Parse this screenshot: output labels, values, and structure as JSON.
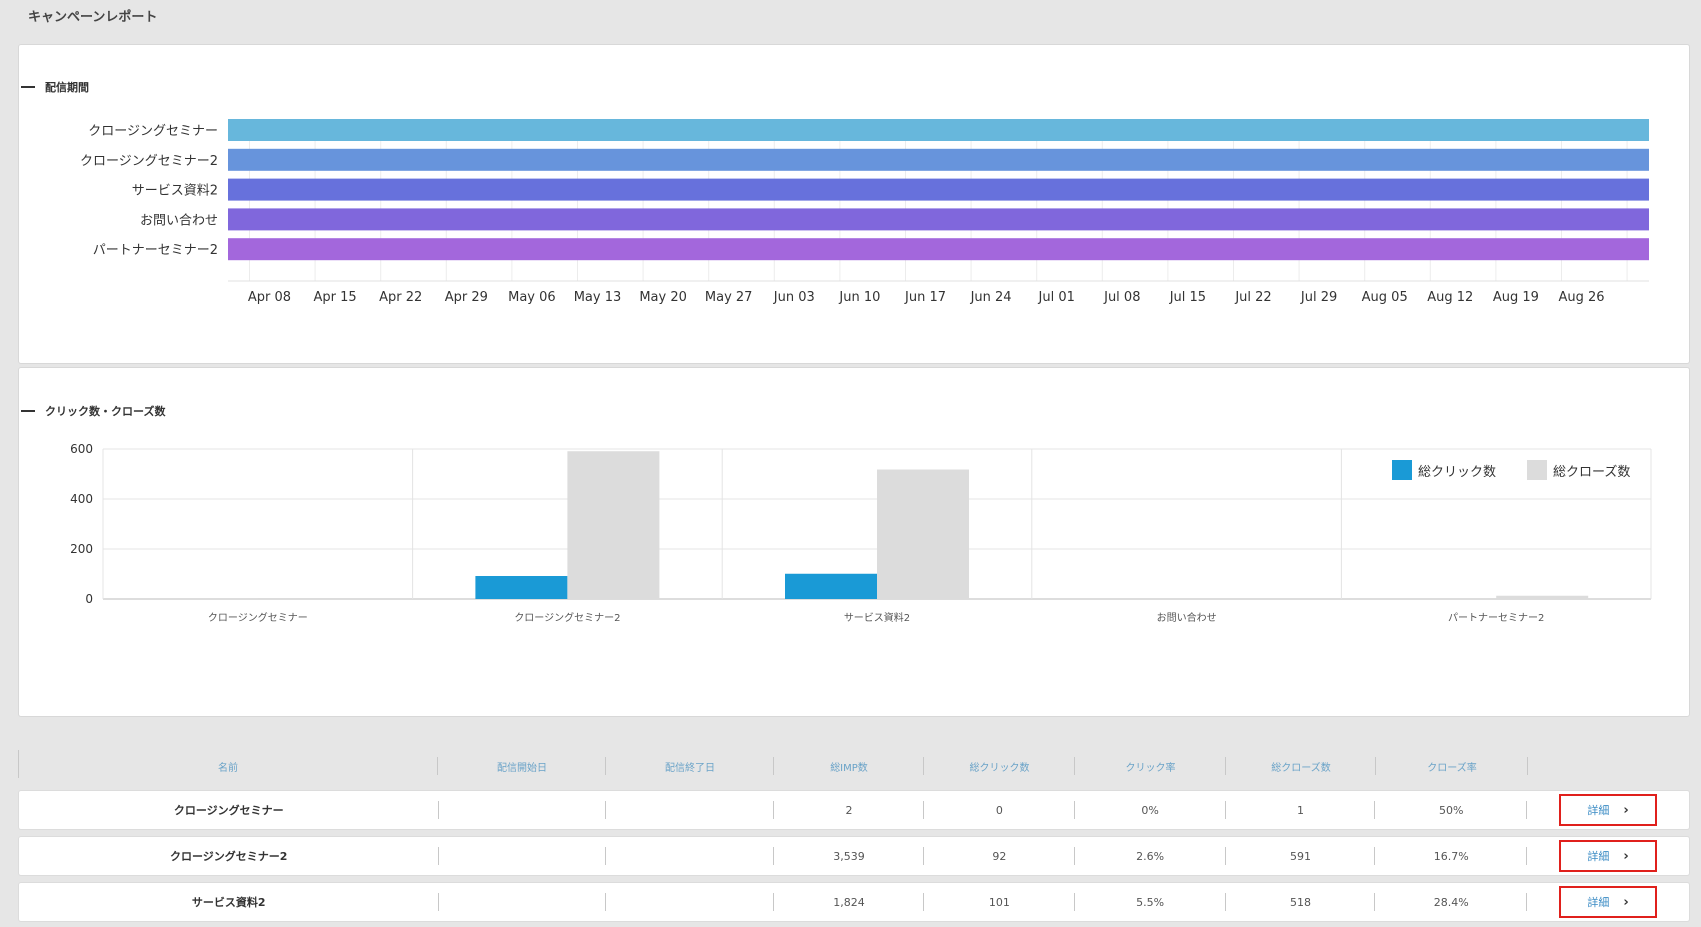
{
  "page": {
    "title": "キャンペーンレポート"
  },
  "period_section": {
    "title": "配信期間"
  },
  "click_section": {
    "title": "クリック数・クローズ数"
  },
  "gantt_data": {
    "rows": [
      "クロージングセミナー",
      "クロージングセミナー2",
      "サービス資料2",
      "お問い合わせ",
      "パートナーセミナー2"
    ],
    "colors": [
      "#67b7dc",
      "#6794dc",
      "#6771dc",
      "#8067dc",
      "#a367dc"
    ],
    "x_ticks": [
      "Apr 08",
      "Apr 15",
      "Apr 22",
      "Apr 29",
      "May 06",
      "May 13",
      "May 20",
      "May 27",
      "Jun 03",
      "Jun 10",
      "Jun 17",
      "Jun 24",
      "Jul 01",
      "Jul 08",
      "Jul 15",
      "Jul 22",
      "Jul 29",
      "Aug 05",
      "Aug 12",
      "Aug 19",
      "Aug 26"
    ]
  },
  "chart_data": {
    "type": "bar",
    "categories": [
      "クロージングセミナー",
      "クロージングセミナー2",
      "サービス資料2",
      "お問い合わせ",
      "パートナーセミナー2"
    ],
    "series": [
      {
        "name": "総クリック数",
        "values": [
          0,
          92,
          101,
          0,
          0
        ],
        "color": "#1a9ad6"
      },
      {
        "name": "総クローズ数",
        "values": [
          1,
          591,
          518,
          0,
          13
        ],
        "color": "#dcdcdc"
      }
    ],
    "y_ticks": [
      "0",
      "200",
      "400",
      "600"
    ],
    "ylim": [
      0,
      600
    ],
    "grid": true,
    "legend_position": "top-right"
  },
  "table": {
    "headers": {
      "name": "名前",
      "start": "配信開始日",
      "end": "配信終了日",
      "imp": "総IMP数",
      "clicks": "総クリック数",
      "click_rate": "クリック率",
      "closes": "総クローズ数",
      "close_rate": "クローズ率"
    },
    "detail_label": "詳細",
    "rows": [
      {
        "name": "クロージングセミナー",
        "start": "",
        "end": "",
        "imp": "2",
        "clicks": "0",
        "click_rate": "0%",
        "closes": "1",
        "close_rate": "50%"
      },
      {
        "name": "クロージングセミナー2",
        "start": "",
        "end": "",
        "imp": "3,539",
        "clicks": "92",
        "click_rate": "2.6%",
        "closes": "591",
        "close_rate": "16.7%"
      },
      {
        "name": "サービス資料2",
        "start": "",
        "end": "",
        "imp": "1,824",
        "clicks": "101",
        "click_rate": "5.5%",
        "closes": "518",
        "close_rate": "28.4%"
      }
    ]
  }
}
